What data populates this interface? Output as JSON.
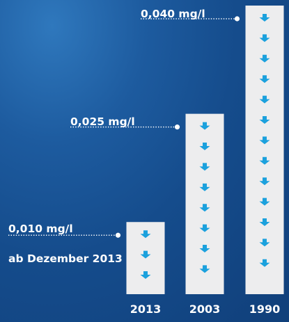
{
  "chart_data": {
    "type": "bar",
    "categories": [
      "2013",
      "2003",
      "1990"
    ],
    "values": [
      0.01,
      0.025,
      0.04
    ],
    "value_labels": [
      "0,010 mg/l",
      "0,025 mg/l",
      "0,040 mg/l"
    ],
    "annotations": [
      "ab Dezember 2013"
    ],
    "ylim": [
      0,
      0.04
    ],
    "grid": false,
    "colors": {
      "background": "#154c8c",
      "bar": "#ededee",
      "arrow": "#1ba1dd",
      "text": "#ffffff"
    }
  }
}
